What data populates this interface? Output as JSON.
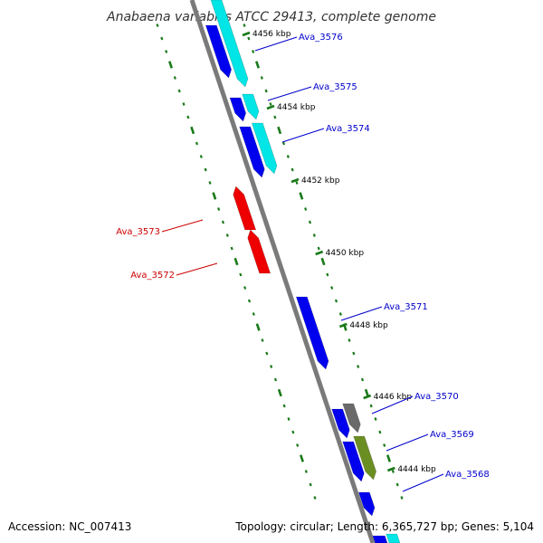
{
  "title": "Anabaena variabilis ATCC 29413, complete genome",
  "footer": {
    "accession": "Accession: NC_007413",
    "summary": "Topology: circular; Length: 6,365,727 bp; Genes: 5,104"
  },
  "colors": {
    "backbone": "#7a7a7a",
    "tick": "#1a7a1a",
    "forward_gene": "#0000ee",
    "reverse_gene": "#ee0000",
    "cyan_feature": "#00e5e5",
    "gray_feature": "#6a6a6a",
    "olive_feature": "#6b8e23",
    "forward_label": "#0000cc",
    "reverse_label": "#cc0000"
  },
  "ticks": [
    {
      "label": "4456 kbp"
    },
    {
      "label": "4454 kbp"
    },
    {
      "label": "4452 kbp"
    },
    {
      "label": "4450 kbp"
    },
    {
      "label": "4448 kbp"
    },
    {
      "label": "4446 kbp"
    },
    {
      "label": "4444 kbp"
    }
  ],
  "genes": [
    {
      "name": "Ava_3576",
      "strand": "forward"
    },
    {
      "name": "Ava_3575",
      "strand": "forward"
    },
    {
      "name": "Ava_3574",
      "strand": "forward"
    },
    {
      "name": "Ava_3573",
      "strand": "reverse"
    },
    {
      "name": "Ava_3572",
      "strand": "reverse"
    },
    {
      "name": "Ava_3571",
      "strand": "forward"
    },
    {
      "name": "Ava_3570",
      "strand": "forward"
    },
    {
      "name": "Ava_3569",
      "strand": "forward"
    },
    {
      "name": "Ava_3568",
      "strand": "forward"
    }
  ]
}
